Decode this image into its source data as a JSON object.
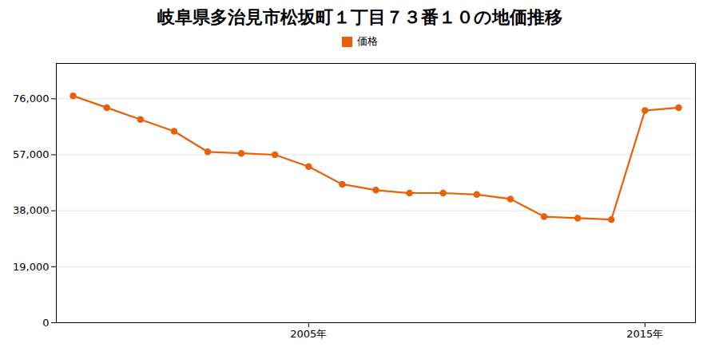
{
  "chart_data": {
    "type": "line",
    "title": "岐阜県多治見市松坂町１丁目７３番１０の地価推移",
    "x": [
      1998,
      1999,
      2000,
      2001,
      2002,
      2003,
      2004,
      2005,
      2006,
      2007,
      2008,
      2009,
      2010,
      2011,
      2012,
      2013,
      2014,
      2015,
      2016
    ],
    "series": [
      {
        "name": "価格",
        "color": "#E8610A",
        "marker": "circle",
        "values": [
          77000,
          73000,
          69000,
          65000,
          58000,
          57500,
          57000,
          53000,
          47000,
          45000,
          44000,
          44000,
          43500,
          42000,
          36000,
          35500,
          35000,
          72000,
          73000
        ]
      }
    ],
    "xlim": [
      1997.5,
      2016.5
    ],
    "xticks": [
      {
        "value": 2005,
        "label": "2005年"
      },
      {
        "value": 2015,
        "label": "2015年"
      }
    ],
    "ylim": [
      0,
      88000
    ],
    "yticks": [
      0,
      {
        "value": 19000,
        "label": "19,000"
      },
      {
        "value": 38000,
        "label": "38,000"
      },
      {
        "value": 57000,
        "label": "57,000"
      },
      {
        "value": 76000,
        "label": "76,000"
      }
    ],
    "grid": "y",
    "legend": "top"
  }
}
